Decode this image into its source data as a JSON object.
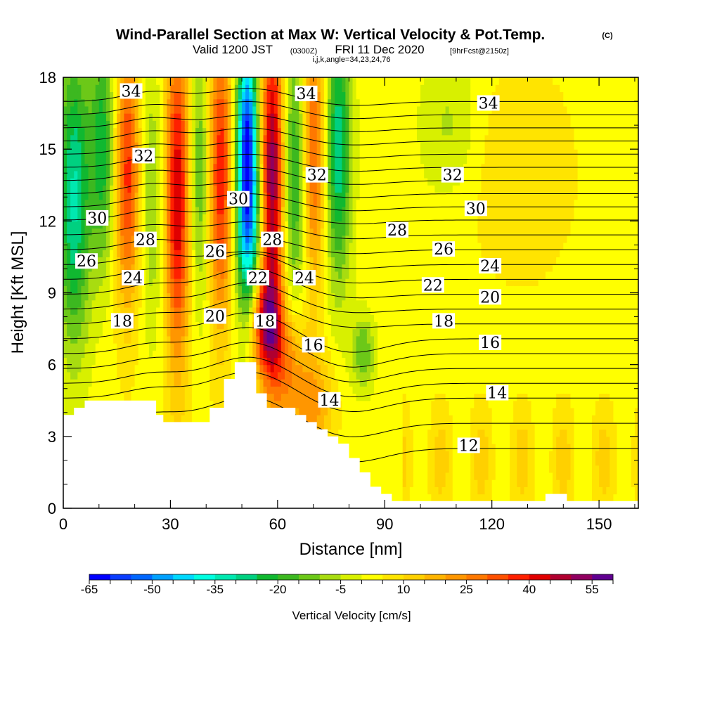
{
  "header": {
    "title": "Wind-Parallel Section at Max W: Vertical Velocity & Pot.Temp.",
    "title_mark": "(C)",
    "subtitle_pre": "Valid 1200 JST",
    "subtitle_utc": "(0300Z)",
    "subtitle_mid": "FRI 11 Dec 2020",
    "subtitle_fcst": "[9hrFcst@2150z]",
    "line3": "i,j,k,angle=34,23,24,76"
  },
  "chart_data": {
    "type": "heatmap",
    "xlabel": "Distance [nm]",
    "ylabel": "Height [Kft MSL]",
    "xlim": [
      0,
      161
    ],
    "ylim": [
      0,
      18
    ],
    "x_ticks": [
      "0",
      "30",
      "60",
      "90",
      "120",
      "150"
    ],
    "y_ticks": [
      "0",
      "3",
      "6",
      "9",
      "12",
      "15",
      "18"
    ],
    "colorbar": {
      "label": "Vertical Velocity [cm/s]",
      "tick_labels": [
        "-65",
        "-50",
        "-35",
        "-20",
        "-5",
        "10",
        "25",
        "40",
        "55"
      ],
      "levels": [
        -65,
        -60,
        -55,
        -50,
        -45,
        -40,
        -35,
        -30,
        -25,
        -20,
        -15,
        -10,
        -5,
        0,
        5,
        10,
        15,
        20,
        25,
        30,
        35,
        40,
        45,
        50,
        55
      ],
      "colors": [
        "#0000ff",
        "#0a3cff",
        "#0066ff",
        "#00a0ff",
        "#00d8ff",
        "#00ffe0",
        "#00e8b0",
        "#00d080",
        "#10b830",
        "#3cb820",
        "#6cc818",
        "#a8dc10",
        "#d8f000",
        "#ffff00",
        "#ffe400",
        "#ffd000",
        "#ffb400",
        "#ff9600",
        "#ff7800",
        "#ff5000",
        "#ff2000",
        "#e00000",
        "#b00030",
        "#900060",
        "#600090"
      ]
    },
    "contour_labels": [
      {
        "text": "34",
        "x": 19,
        "y": 17.4
      },
      {
        "text": "34",
        "x": 68,
        "y": 17.3
      },
      {
        "text": "34",
        "x": 119,
        "y": 16.9
      },
      {
        "text": "32",
        "x": 22.5,
        "y": 14.7
      },
      {
        "text": "32",
        "x": 71,
        "y": 13.9
      },
      {
        "text": "32",
        "x": 109,
        "y": 13.9
      },
      {
        "text": "30",
        "x": 49,
        "y": 12.9
      },
      {
        "text": "30",
        "x": 9.5,
        "y": 12.1
      },
      {
        "text": "30",
        "x": 115.5,
        "y": 12.5
      },
      {
        "text": "28",
        "x": 23,
        "y": 11.2
      },
      {
        "text": "28",
        "x": 58.5,
        "y": 11.2
      },
      {
        "text": "28",
        "x": 93.5,
        "y": 11.6
      },
      {
        "text": "26",
        "x": 6.5,
        "y": 10.3
      },
      {
        "text": "26",
        "x": 42.5,
        "y": 10.7
      },
      {
        "text": "26",
        "x": 106.5,
        "y": 10.8
      },
      {
        "text": "24",
        "x": 19.5,
        "y": 9.6
      },
      {
        "text": "24",
        "x": 67.5,
        "y": 9.6
      },
      {
        "text": "24",
        "x": 119.5,
        "y": 10.1
      },
      {
        "text": "22",
        "x": 54.5,
        "y": 9.6
      },
      {
        "text": "22",
        "x": 103.5,
        "y": 9.3
      },
      {
        "text": "20",
        "x": 42.5,
        "y": 8.0
      },
      {
        "text": "20",
        "x": 119.5,
        "y": 8.8
      },
      {
        "text": "18",
        "x": 16.5,
        "y": 7.8
      },
      {
        "text": "18",
        "x": 56.5,
        "y": 7.8
      },
      {
        "text": "18",
        "x": 106.5,
        "y": 7.8
      },
      {
        "text": "16",
        "x": 70,
        "y": 6.8
      },
      {
        "text": "16",
        "x": 119.5,
        "y": 6.9
      },
      {
        "text": "14",
        "x": 74.5,
        "y": 4.5
      },
      {
        "text": "14",
        "x": 121.5,
        "y": 4.8
      },
      {
        "text": "12",
        "x": 113.5,
        "y": 2.6
      }
    ]
  }
}
